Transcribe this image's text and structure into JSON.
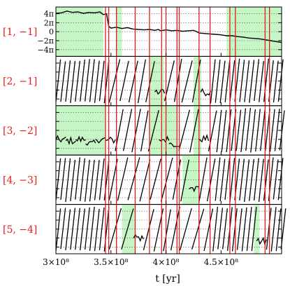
{
  "chart_data": {
    "type": "line",
    "description_free": true,
    "x_axis": {
      "label": "t [yr]",
      "lim": [
        300000000,
        505000000
      ],
      "ticks": [
        {
          "value": 300000000,
          "label": "3×10⁸"
        },
        {
          "value": 350000000,
          "label": "3.5×10⁸"
        },
        {
          "value": 400000000,
          "label": "4×10⁸"
        },
        {
          "value": 450000000,
          "label": "4.5×10⁸"
        }
      ]
    },
    "y_axis": {
      "lim": [
        -5.5,
        5.5
      ],
      "unit": "π",
      "ticks": [
        {
          "value": 4,
          "label": "4π"
        },
        {
          "value": 2,
          "label": "2π"
        },
        {
          "value": 0,
          "label": "0"
        },
        {
          "value": -2,
          "label": "−2π"
        },
        {
          "value": -4,
          "label": "−4π"
        }
      ]
    },
    "panels": [
      {
        "label": "[1, −1]",
        "mode": "continuous",
        "points": [
          [
            300,
            4.1
          ],
          [
            305,
            4.2
          ],
          [
            310,
            4.6
          ],
          [
            315,
            4.3
          ],
          [
            320,
            4.4
          ],
          [
            325,
            4.1
          ],
          [
            330,
            4.3
          ],
          [
            335,
            4.2
          ],
          [
            340,
            4.4
          ],
          [
            343,
            3.8
          ],
          [
            346,
            4.0
          ],
          [
            348,
            1.2
          ],
          [
            350,
            0.8
          ],
          [
            355,
            1.0
          ],
          [
            360,
            0.7
          ],
          [
            365,
            0.9
          ],
          [
            370,
            0.6
          ],
          [
            380,
            0.4
          ],
          [
            385,
            0.5
          ],
          [
            390,
            0.3
          ],
          [
            393,
            0.5
          ],
          [
            395,
            0.2
          ],
          [
            400,
            0.4
          ],
          [
            405,
            0.2
          ],
          [
            410,
            0.3
          ],
          [
            415,
            0.1
          ],
          [
            420,
            0.2
          ],
          [
            425,
            0.3
          ],
          [
            428,
            0.0
          ],
          [
            430,
            -0.3
          ],
          [
            440,
            -0.5
          ],
          [
            445,
            -0.6
          ],
          [
            450,
            -0.7
          ],
          [
            455,
            -0.9
          ],
          [
            460,
            -0.9
          ],
          [
            465,
            -1.1
          ],
          [
            470,
            -1.2
          ],
          [
            475,
            -1.4
          ],
          [
            480,
            -1.5
          ],
          [
            485,
            -1.6
          ],
          [
            490,
            -1.8
          ],
          [
            495,
            -2.0
          ],
          [
            500,
            -2.2
          ],
          [
            505,
            -2.4
          ]
        ]
      },
      {
        "label": "[2, −1]",
        "mode": "circulating"
      },
      {
        "label": "[3, −2]",
        "mode": "circulating"
      },
      {
        "label": "[4, −3]",
        "mode": "circulating"
      },
      {
        "label": "[5, −4]",
        "mode": "circulating"
      }
    ],
    "shaded_intervals": [
      [
        [
          300,
          343
        ],
        [
          355,
          360
        ],
        [
          455,
          505
        ]
      ],
      [
        [
          385,
          398
        ],
        [
          425,
          432
        ]
      ],
      [
        [
          300,
          345
        ],
        [
          385,
          410
        ],
        [
          425,
          432
        ]
      ],
      [
        [
          415,
          430
        ]
      ],
      [
        [
          360,
          372
        ],
        [
          480,
          485
        ]
      ]
    ],
    "vertical_lines": [
      345,
      348,
      355,
      372,
      385,
      396,
      400,
      410,
      412,
      430,
      440,
      458,
      463,
      490,
      494
    ],
    "colors": {
      "shade": "#c6f5c6",
      "vline": "#e41b1b",
      "label": "#e41b1b",
      "line": "#000000",
      "grid": "#555555"
    }
  }
}
